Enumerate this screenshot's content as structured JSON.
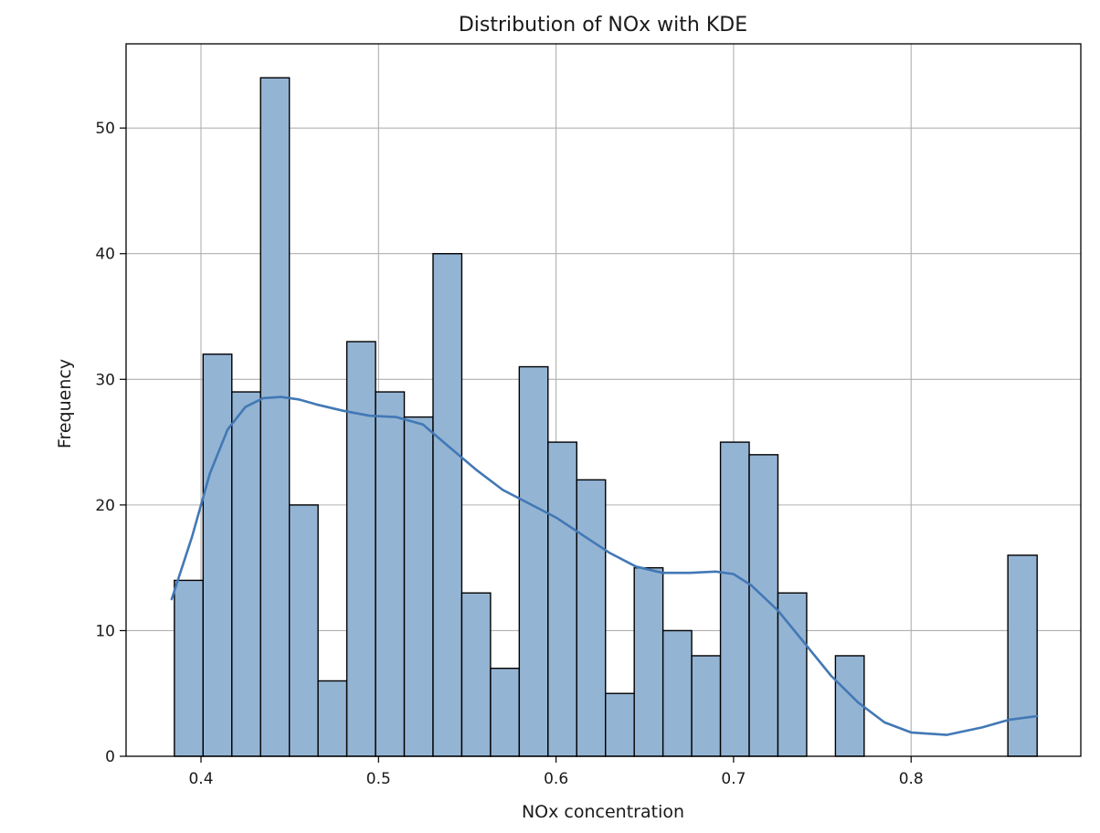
{
  "chart_data": {
    "type": "bar",
    "title": "Distribution of NOx with KDE",
    "xlabel": "NOx concentration",
    "ylabel": "Frequency",
    "xlim": [
      0.3578,
      0.8956
    ],
    "ylim": [
      0,
      56.7
    ],
    "x_ticks": [
      0.4,
      0.5,
      0.6,
      0.7,
      0.8
    ],
    "y_ticks": [
      0,
      10,
      20,
      30,
      40,
      50
    ],
    "grid": true,
    "bin_edges": [
      0.385,
      0.40119,
      0.41738,
      0.43357,
      0.44976,
      0.46595,
      0.48214,
      0.49833,
      0.51452,
      0.53071,
      0.5469,
      0.56309,
      0.57928,
      0.59547,
      0.61166,
      0.62785,
      0.64404,
      0.66023,
      0.67642,
      0.69261,
      0.7088,
      0.72499,
      0.74118,
      0.75737,
      0.77356,
      0.78975,
      0.80594,
      0.82213,
      0.83832,
      0.85451,
      0.871
    ],
    "counts": [
      14,
      32,
      29,
      54,
      20,
      6,
      33,
      29,
      27,
      40,
      13,
      7,
      31,
      25,
      22,
      5,
      15,
      10,
      8,
      25,
      24,
      13,
      0,
      8,
      0,
      0,
      0,
      0,
      0,
      16
    ],
    "kde": {
      "x": [
        0.3835,
        0.395,
        0.405,
        0.415,
        0.425,
        0.435,
        0.445,
        0.455,
        0.465,
        0.48,
        0.495,
        0.51,
        0.525,
        0.54,
        0.555,
        0.57,
        0.585,
        0.6,
        0.615,
        0.63,
        0.645,
        0.66,
        0.675,
        0.69,
        0.7,
        0.71,
        0.725,
        0.74,
        0.755,
        0.77,
        0.785,
        0.8,
        0.82,
        0.84,
        0.855,
        0.871
      ],
      "y": [
        12.5,
        17.5,
        22.5,
        26.0,
        27.8,
        28.5,
        28.6,
        28.4,
        28.0,
        27.5,
        27.1,
        27.0,
        26.4,
        24.6,
        22.8,
        21.2,
        20.1,
        19.0,
        17.6,
        16.2,
        15.1,
        14.6,
        14.6,
        14.7,
        14.5,
        13.6,
        11.6,
        9.0,
        6.4,
        4.3,
        2.7,
        1.9,
        1.7,
        2.3,
        2.9,
        3.2
      ]
    },
    "colors": {
      "bar_fill": "#94b4d4",
      "bar_edge": "#000000",
      "kde_line": "#4278b5",
      "grid": "#b0b0b0"
    }
  }
}
